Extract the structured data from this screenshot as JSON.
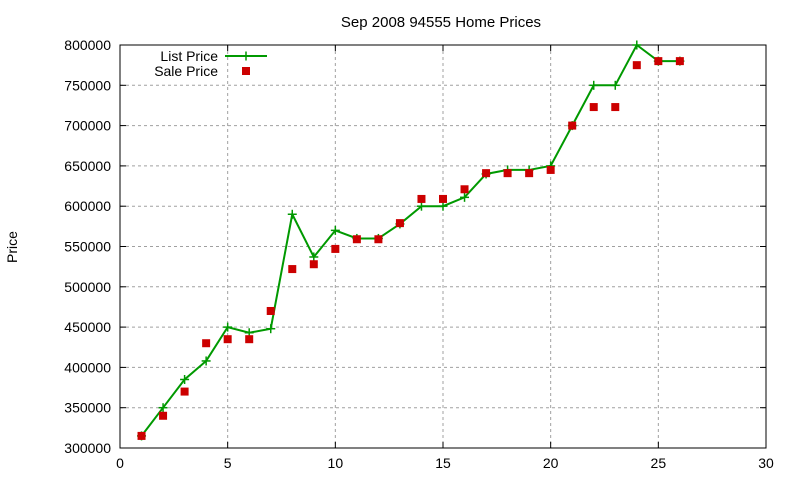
{
  "chart_data": {
    "type": "line",
    "title": "Sep 2008 94555 Home Prices",
    "xlabel": "",
    "ylabel": "Price",
    "xlim": [
      0,
      30
    ],
    "ylim": [
      300000,
      800000
    ],
    "x_ticks": [
      0,
      5,
      10,
      15,
      20,
      25,
      30
    ],
    "y_ticks": [
      300000,
      350000,
      400000,
      450000,
      500000,
      550000,
      600000,
      650000,
      700000,
      750000,
      800000
    ],
    "grid": true,
    "legend_position": "top-left",
    "series": [
      {
        "name": "List Price",
        "style": "line-with-plus",
        "color": "#009900",
        "points": [
          [
            1,
            315000
          ],
          [
            2,
            350000
          ],
          [
            3,
            385000
          ],
          [
            4,
            408000
          ],
          [
            5,
            450000
          ],
          [
            6,
            443000
          ],
          [
            7,
            448000
          ],
          [
            8,
            590000
          ],
          [
            9,
            537000
          ],
          [
            10,
            570000
          ],
          [
            11,
            560000
          ],
          [
            12,
            560000
          ],
          [
            13,
            578000
          ],
          [
            14,
            600000
          ],
          [
            15,
            600000
          ],
          [
            16,
            611000
          ],
          [
            17,
            640000
          ],
          [
            18,
            645000
          ],
          [
            19,
            645000
          ],
          [
            20,
            650000
          ],
          [
            21,
            700000
          ],
          [
            22,
            750000
          ],
          [
            23,
            750000
          ],
          [
            24,
            800000
          ],
          [
            25,
            780000
          ],
          [
            26,
            780000
          ]
        ]
      },
      {
        "name": "Sale Price",
        "style": "square-markers",
        "color": "#cc0000",
        "points": [
          [
            1,
            315000
          ],
          [
            2,
            340000
          ],
          [
            3,
            370000
          ],
          [
            4,
            430000
          ],
          [
            5,
            435000
          ],
          [
            6,
            435000
          ],
          [
            7,
            470000
          ],
          [
            8,
            522000
          ],
          [
            9,
            528000
          ],
          [
            10,
            547000
          ],
          [
            11,
            559000
          ],
          [
            12,
            559000
          ],
          [
            13,
            579000
          ],
          [
            14,
            609000
          ],
          [
            15,
            609000
          ],
          [
            16,
            621000
          ],
          [
            17,
            641000
          ],
          [
            18,
            641000
          ],
          [
            19,
            641000
          ],
          [
            20,
            645000
          ],
          [
            21,
            700000
          ],
          [
            22,
            723000
          ],
          [
            23,
            723000
          ],
          [
            24,
            775000
          ],
          [
            25,
            780000
          ],
          [
            26,
            780000
          ]
        ]
      }
    ]
  }
}
